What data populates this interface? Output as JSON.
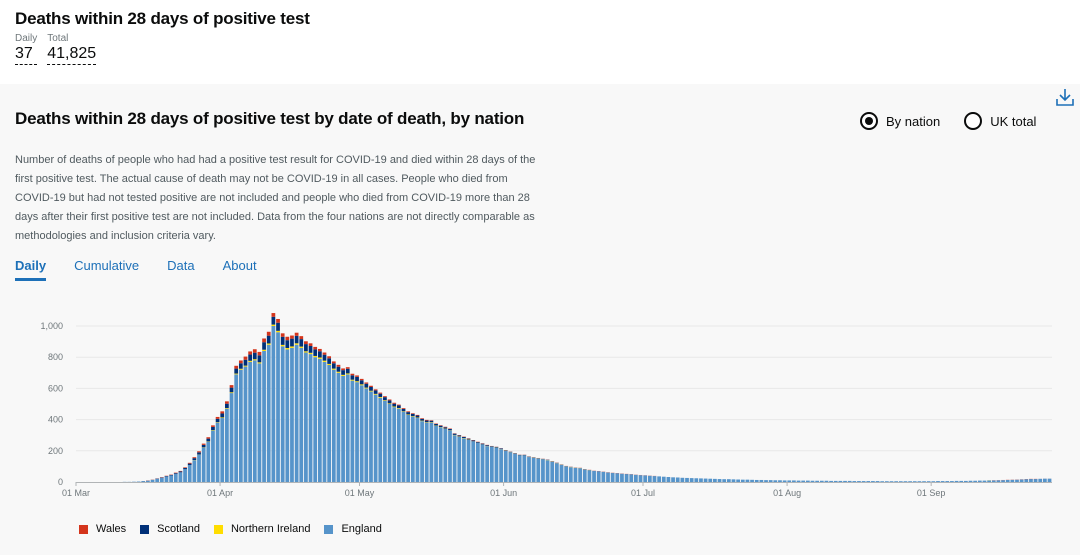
{
  "page": {
    "title": "Deaths within 28 days of positive test",
    "headline": {
      "daily_label": "Daily",
      "daily_value": "37",
      "total_label": "Total",
      "total_value": "41,825"
    }
  },
  "card": {
    "title": "Deaths within 28 days of positive test by date of death, by nation",
    "radios": [
      {
        "label": "By nation",
        "checked": true
      },
      {
        "label": "UK total",
        "checked": false
      }
    ],
    "description": "Number of deaths of people who had had a positive test result for COVID-19 and died within 28 days of the first positive test. The actual cause of death may not be COVID-19 in all cases. People who died from COVID-19 but had not tested positive are not included and people who died from COVID-19 more than 28 days after their first positive test are not included. Data from the four nations are not directly comparable as methodologies and inclusion criteria vary.",
    "tabs": [
      {
        "label": "Daily",
        "active": true
      },
      {
        "label": "Cumulative",
        "active": false
      },
      {
        "label": "Data",
        "active": false
      },
      {
        "label": "About",
        "active": false
      }
    ]
  },
  "colors": {
    "wales": "#d4351c",
    "scotland": "#003078",
    "northern_ireland": "#ffdd00",
    "england": "#5694ca",
    "axis": "#b1b4b6",
    "grid": "#e8e8e8"
  },
  "chart_data": {
    "type": "bar",
    "stacked": true,
    "title": "Deaths within 28 days of positive test by date of death, by nation",
    "x_start": "2020-03-01",
    "x_end": "2020-09-21",
    "x_ticks": [
      "01 Mar",
      "01 Apr",
      "01 May",
      "01 Jun",
      "01 Jul",
      "01 Aug",
      "01 Sep"
    ],
    "x_tick_days": [
      0,
      31,
      61,
      92,
      122,
      153,
      184
    ],
    "y_ticks": [
      "0",
      "200",
      "400",
      "600",
      "800",
      "1,000"
    ],
    "y_tick_values": [
      0,
      200,
      400,
      600,
      800,
      1000
    ],
    "ylim": [
      0,
      1080
    ],
    "legend": [
      "Wales",
      "Scotland",
      "Northern Ireland",
      "England"
    ],
    "series": [
      {
        "name": "England",
        "values": [
          0,
          0,
          0,
          0,
          0,
          0,
          0,
          0,
          0,
          0,
          1,
          1,
          2,
          3,
          5,
          8,
          13,
          20,
          27,
          35,
          42,
          52,
          62,
          82,
          108,
          140,
          175,
          220,
          258,
          330,
          380,
          410,
          470,
          570,
          690,
          720,
          740,
          770,
          780,
          760,
          840,
          880,
          1000,
          960,
          870,
          850,
          860,
          880,
          860,
          830,
          820,
          800,
          790,
          770,
          750,
          720,
          700,
          680,
          690,
          650,
          640,
          620,
          600,
          580,
          560,
          540,
          520,
          500,
          480,
          470,
          450,
          430,
          420,
          410,
          390,
          380,
          380,
          360,
          350,
          340,
          330,
          300,
          290,
          280,
          270,
          260,
          250,
          240,
          230,
          225,
          220,
          210,
          200,
          190,
          180,
          170,
          170,
          160,
          155,
          150,
          145,
          140,
          130,
          120,
          110,
          100,
          95,
          90,
          88,
          80,
          75,
          70,
          68,
          64,
          60,
          57,
          55,
          52,
          50,
          48,
          46,
          44,
          42,
          40,
          38,
          36,
          34,
          32,
          30,
          29,
          27,
          26,
          25,
          24,
          23,
          22,
          21,
          20,
          19,
          18,
          18,
          17,
          16,
          15,
          15,
          14,
          13,
          13,
          12,
          12,
          11,
          11,
          10,
          10,
          10,
          9,
          9,
          9,
          8,
          8,
          8,
          8,
          7,
          7,
          7,
          7,
          7,
          6,
          6,
          6,
          6,
          6,
          6,
          5,
          5,
          5,
          5,
          5,
          5,
          5,
          5,
          5,
          5,
          5,
          5,
          6,
          6,
          6,
          6,
          7,
          7,
          7,
          8,
          8,
          9,
          9,
          10,
          10,
          11,
          12,
          13,
          14,
          15,
          16,
          17,
          18,
          18,
          19,
          20,
          20
        ]
      },
      {
        "name": "Northern Ireland",
        "values": [
          0,
          0,
          0,
          0,
          0,
          0,
          0,
          0,
          0,
          0,
          0,
          0,
          0,
          0,
          0,
          0,
          0,
          0,
          0,
          0,
          0,
          0,
          0,
          0,
          0,
          1,
          1,
          2,
          2,
          3,
          3,
          4,
          4,
          5,
          5,
          6,
          6,
          7,
          7,
          7,
          8,
          8,
          9,
          9,
          9,
          9,
          9,
          9,
          8,
          8,
          8,
          8,
          8,
          8,
          7,
          7,
          7,
          7,
          6,
          6,
          6,
          6,
          5,
          5,
          5,
          5,
          4,
          4,
          4,
          4,
          3,
          3,
          3,
          3,
          3,
          3,
          3,
          2,
          2,
          2,
          2,
          2,
          2,
          2,
          2,
          1,
          1,
          1,
          1,
          1,
          1,
          1,
          1,
          1,
          1,
          1,
          1,
          1,
          1,
          1,
          1,
          1,
          1,
          1,
          1,
          1,
          1,
          1,
          1,
          1,
          1,
          0,
          0,
          0,
          0,
          0,
          0,
          0,
          0,
          0,
          0,
          0,
          0,
          0,
          0,
          0,
          0,
          0,
          0,
          0,
          0,
          0,
          0,
          0,
          0,
          0,
          0,
          0,
          0,
          0,
          0,
          0,
          0,
          0,
          0,
          0,
          0,
          0,
          0,
          0,
          0,
          0,
          0,
          0,
          0,
          0,
          0,
          0,
          0,
          0,
          0,
          0,
          0,
          0,
          0,
          0,
          0,
          0,
          0,
          0,
          0,
          0,
          0,
          0,
          0,
          0,
          0,
          0,
          0,
          0,
          0,
          0,
          0,
          0,
          0,
          0,
          0,
          0,
          0,
          0,
          0,
          0,
          0,
          0,
          0,
          0,
          1,
          0,
          0,
          0,
          0,
          0,
          0,
          0,
          0,
          0,
          0
        ]
      },
      {
        "name": "Scotland",
        "values": [
          0,
          0,
          0,
          0,
          0,
          0,
          0,
          0,
          0,
          0,
          0,
          0,
          0,
          0,
          1,
          1,
          1,
          2,
          2,
          3,
          4,
          5,
          6,
          8,
          10,
          12,
          14,
          16,
          18,
          20,
          22,
          25,
          28,
          30,
          32,
          35,
          38,
          40,
          42,
          45,
          48,
          50,
          50,
          52,
          52,
          50,
          50,
          48,
          48,
          46,
          44,
          42,
          40,
          38,
          36,
          34,
          32,
          30,
          30,
          28,
          28,
          26,
          25,
          24,
          22,
          21,
          20,
          19,
          18,
          17,
          16,
          15,
          14,
          13,
          12,
          11,
          10,
          10,
          9,
          9,
          8,
          8,
          7,
          7,
          6,
          6,
          5,
          5,
          5,
          4,
          4,
          4,
          3,
          3,
          3,
          3,
          3,
          2,
          2,
          2,
          2,
          2,
          2,
          2,
          1,
          1,
          1,
          1,
          1,
          1,
          1,
          1,
          1,
          1,
          1,
          1,
          1,
          1,
          1,
          1,
          0,
          0,
          0,
          0,
          0,
          0,
          0,
          0,
          0,
          0,
          0,
          0,
          0,
          0,
          0,
          0,
          0,
          0,
          0,
          0,
          0,
          0,
          0,
          0,
          0,
          0,
          0,
          0,
          0,
          0,
          0,
          0,
          0,
          0,
          0,
          0,
          0,
          0,
          0,
          0,
          0,
          0,
          0,
          0,
          0,
          0,
          0,
          0,
          0,
          0,
          0,
          0,
          0,
          0,
          0,
          0,
          0,
          0,
          0,
          0,
          0,
          0,
          0,
          0,
          0,
          0,
          0,
          0,
          0,
          0,
          0,
          0,
          0,
          0,
          0,
          0,
          0,
          0,
          0,
          0,
          0,
          0,
          0,
          0,
          1,
          1,
          1,
          1,
          1,
          1,
          1
        ]
      },
      {
        "name": "Wales",
        "values": [
          0,
          0,
          0,
          0,
          0,
          0,
          0,
          0,
          0,
          0,
          0,
          0,
          0,
          0,
          0,
          1,
          1,
          1,
          2,
          2,
          2,
          3,
          3,
          4,
          5,
          6,
          7,
          8,
          9,
          10,
          12,
          14,
          15,
          16,
          18,
          18,
          20,
          20,
          22,
          22,
          24,
          25,
          24,
          24,
          22,
          22,
          20,
          20,
          19,
          18,
          17,
          16,
          15,
          14,
          13,
          12,
          12,
          11,
          10,
          10,
          9,
          9,
          8,
          8,
          7,
          7,
          6,
          6,
          6,
          5,
          5,
          5,
          4,
          4,
          4,
          4,
          3,
          3,
          3,
          3,
          3,
          2,
          2,
          2,
          2,
          2,
          2,
          2,
          2,
          1,
          1,
          1,
          1,
          1,
          1,
          1,
          1,
          1,
          1,
          1,
          1,
          1,
          1,
          1,
          1,
          1,
          1,
          1,
          1,
          1,
          1,
          1,
          1,
          1,
          1,
          1,
          1,
          1,
          1,
          1,
          1,
          1,
          1,
          1,
          1,
          0,
          0,
          0,
          0,
          0,
          0,
          0,
          0,
          0,
          0,
          0,
          0,
          0,
          0,
          0,
          0,
          0,
          0,
          0,
          0,
          0,
          0,
          0,
          0,
          0,
          0,
          0,
          0,
          0,
          0,
          0,
          0,
          0,
          0,
          0,
          0,
          0,
          0,
          0,
          0,
          0,
          0,
          0,
          0,
          0,
          0,
          0,
          0,
          0,
          0,
          0,
          0,
          0,
          0,
          0,
          0,
          0,
          0,
          0,
          0,
          0,
          0,
          0,
          0,
          0,
          0,
          0,
          0,
          0,
          0,
          0,
          0,
          1,
          1,
          1,
          1,
          1,
          1,
          1,
          1,
          1,
          1
        ]
      }
    ]
  }
}
